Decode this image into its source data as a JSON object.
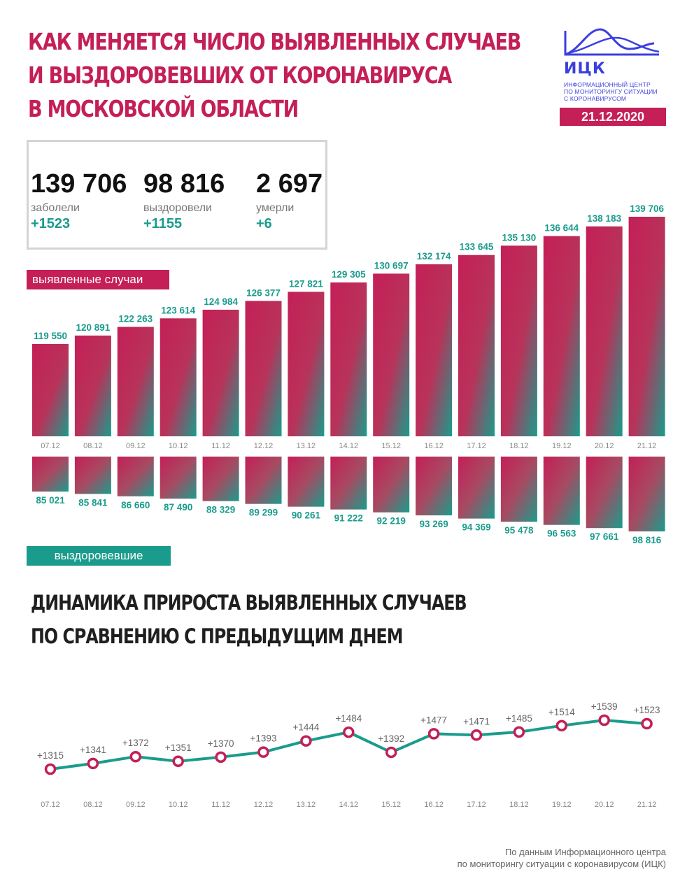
{
  "header": {
    "title_lines": [
      "КАК МЕНЯЕТСЯ ЧИСЛО ВЫЯВЛЕННЫХ СЛУЧАЕВ",
      "И ВЫЗДОРОВЕВШИХ ОТ КОРОНАВИРУСА",
      "В МОСКОВСКОЙ ОБЛАСТИ"
    ]
  },
  "logo": {
    "abbr": "ИЦК",
    "subtitle_lines": [
      "Информационный центр",
      "по мониторингу ситуации",
      "с коронавирусом"
    ]
  },
  "date": "21.12.2020",
  "stats": [
    {
      "value": "139 706",
      "label": "заболели",
      "delta": "+1523"
    },
    {
      "value": "98 816",
      "label": "выздоровели",
      "delta": "+1155"
    },
    {
      "value": "2 697",
      "label": "умерли",
      "delta": "+6"
    }
  ],
  "tags": {
    "cases": "выявленные случаи",
    "recovered": "выздоровевшие"
  },
  "subtitle_lines": [
    "ДИНАМИКА ПРИРОСТА ВЫЯВЛЕННЫХ СЛУЧАЕВ",
    "ПО СРАВНЕНИЮ С ПРЕДЫДУЩИМ ДНЕМ"
  ],
  "source_lines": [
    "По данным Информационного центра",
    "по мониторингу ситуации с коронавирусом (ИЦК)"
  ],
  "colors": {
    "crimson": "#c41f57",
    "teal": "#1a9c8c",
    "logo_blue": "#3b3fdd"
  },
  "chart_data": [
    {
      "type": "bar",
      "categories": [
        "07.12",
        "08.12",
        "09.12",
        "10.12",
        "11.12",
        "12.12",
        "13.12",
        "14.12",
        "15.12",
        "16.12",
        "17.12",
        "18.12",
        "19.12",
        "20.12",
        "21.12"
      ],
      "series": [
        {
          "name": "выявленные случаи",
          "values": [
            119550,
            120891,
            122263,
            123614,
            124984,
            126377,
            127821,
            129305,
            130697,
            132174,
            133645,
            135130,
            136644,
            138183,
            139706
          ],
          "labels": [
            "119 550",
            "120 891",
            "122 263",
            "123 614",
            "124 984",
            "126 377",
            "127 821",
            "129 305",
            "130 697",
            "132 174",
            "133 645",
            "135 130",
            "136 644",
            "138 183",
            "139 706"
          ]
        },
        {
          "name": "выздоровевшие",
          "values": [
            85021,
            85841,
            86660,
            87490,
            88329,
            89299,
            90261,
            91222,
            92219,
            93269,
            94369,
            95478,
            96563,
            97661,
            98816
          ],
          "labels": [
            "85 021",
            "85 841",
            "86 660",
            "87 490",
            "88 329",
            "89 299",
            "90 261",
            "91 222",
            "92 219",
            "93 269",
            "94 369",
            "95 478",
            "96 563",
            "97 661",
            "98 816"
          ]
        }
      ]
    },
    {
      "type": "line",
      "categories": [
        "07.12",
        "08.12",
        "09.12",
        "10.12",
        "11.12",
        "12.12",
        "13.12",
        "14.12",
        "15.12",
        "16.12",
        "17.12",
        "18.12",
        "19.12",
        "20.12",
        "21.12"
      ],
      "values": [
        1315,
        1341,
        1372,
        1351,
        1370,
        1393,
        1444,
        1484,
        1392,
        1477,
        1471,
        1485,
        1514,
        1539,
        1523
      ],
      "labels": [
        "+1315",
        "+1341",
        "+1372",
        "+1351",
        "+1370",
        "+1393",
        "+1444",
        "+1484",
        "+1392",
        "+1477",
        "+1471",
        "+1485",
        "+1514",
        "+1539",
        "+1523"
      ]
    }
  ]
}
